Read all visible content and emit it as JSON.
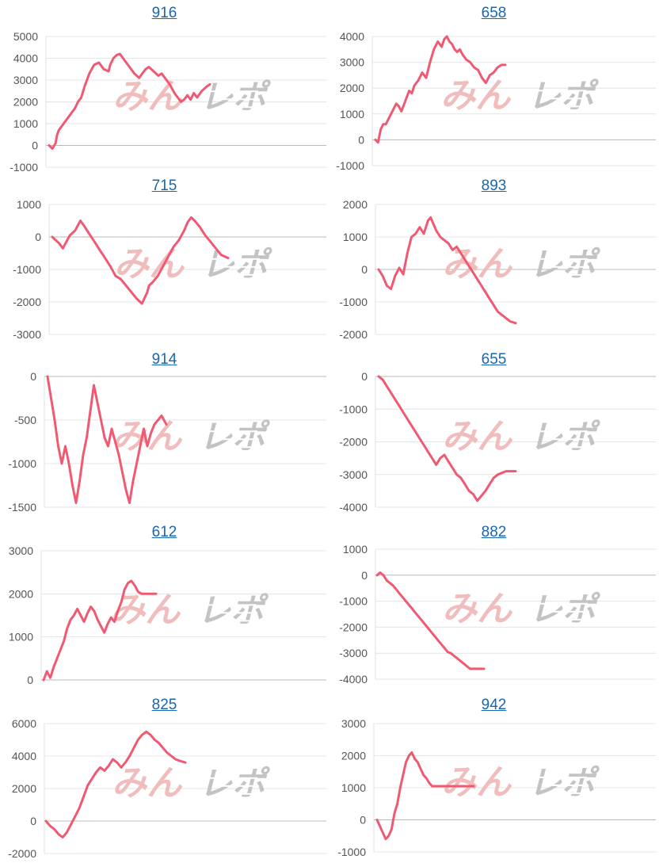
{
  "chart_data": [
    {
      "type": "line",
      "title": "916",
      "yticks": [
        -1000,
        0,
        1000,
        2000,
        3000,
        4000,
        5000
      ],
      "ylim": [
        -1000,
        5000
      ],
      "grid": true,
      "series": [
        {
          "color": "#ef5a72",
          "x": [
            0,
            2,
            4,
            5,
            6,
            9,
            12,
            14,
            16,
            18,
            20,
            22,
            25,
            28,
            31,
            34,
            37,
            38,
            40,
            42,
            44,
            47,
            50,
            53,
            56,
            58,
            60,
            62,
            65,
            68,
            70,
            72,
            75,
            78,
            80,
            82,
            84,
            86,
            88,
            90,
            92,
            95,
            98,
            100
          ],
          "values": [
            0,
            -150,
            100,
            500,
            700,
            1000,
            1300,
            1500,
            1700,
            2000,
            2200,
            2700,
            3300,
            3700,
            3800,
            3500,
            3400,
            3700,
            4000,
            4150,
            4200,
            3900,
            3600,
            3300,
            3100,
            3300,
            3500,
            3600,
            3400,
            3200,
            3300,
            3100,
            2800,
            2400,
            2200,
            2000,
            2100,
            2300,
            2100,
            2400,
            2200,
            2500,
            2700,
            2800
          ]
        }
      ]
    },
    {
      "type": "line",
      "title": "658",
      "yticks": [
        -1000,
        0,
        1000,
        2000,
        3000,
        4000
      ],
      "ylim": [
        -1000,
        4000
      ],
      "grid": true,
      "series": [
        {
          "color": "#ef5a72",
          "x": [
            0,
            2,
            4,
            6,
            8,
            11,
            14,
            16,
            18,
            20,
            23,
            26,
            28,
            30,
            33,
            36,
            39,
            42,
            45,
            48,
            51,
            53,
            55,
            57,
            59,
            61,
            63,
            65,
            67,
            70,
            73,
            76,
            79,
            82,
            85,
            88,
            91,
            94,
            97,
            100
          ],
          "values": [
            0,
            -100,
            400,
            600,
            600,
            900,
            1200,
            1400,
            1300,
            1100,
            1500,
            1900,
            1800,
            2100,
            2300,
            2600,
            2400,
            3000,
            3500,
            3800,
            3600,
            3900,
            4000,
            3800,
            3700,
            3500,
            3400,
            3500,
            3300,
            3100,
            3000,
            2800,
            2700,
            2400,
            2200,
            2500,
            2600,
            2800,
            2900,
            2900
          ]
        }
      ]
    },
    {
      "type": "line",
      "title": "715",
      "yticks": [
        -3000,
        -2000,
        -1000,
        0,
        1000
      ],
      "ylim": [
        -3000,
        1000
      ],
      "grid": true,
      "series": [
        {
          "color": "#ef5a72",
          "x": [
            0,
            2,
            4,
            6,
            8,
            10,
            13,
            16,
            18,
            21,
            24,
            27,
            30,
            33,
            36,
            39,
            42,
            45,
            48,
            51,
            54,
            55,
            57,
            60,
            63,
            66,
            69,
            72,
            75,
            77,
            79,
            81,
            84,
            87,
            90,
            93,
            96,
            100
          ],
          "values": [
            0,
            -100,
            -200,
            -350,
            -150,
            50,
            200,
            500,
            350,
            100,
            -150,
            -400,
            -650,
            -900,
            -1200,
            -1300,
            -1500,
            -1700,
            -1900,
            -2050,
            -1700,
            -1500,
            -1400,
            -1200,
            -900,
            -600,
            -300,
            -100,
            200,
            450,
            600,
            500,
            300,
            50,
            -150,
            -350,
            -550,
            -650
          ]
        }
      ]
    },
    {
      "type": "line",
      "title": "893",
      "yticks": [
        -2000,
        -1000,
        0,
        1000,
        2000
      ],
      "ylim": [
        -2000,
        2000
      ],
      "grid": true,
      "series": [
        {
          "color": "#ef5a72",
          "x": [
            0,
            3,
            6,
            9,
            12,
            15,
            18,
            21,
            24,
            27,
            30,
            33,
            36,
            38,
            40,
            42,
            45,
            48,
            51,
            54,
            57,
            60,
            63,
            66,
            69,
            72,
            75,
            78,
            81,
            84,
            87,
            90,
            93,
            96,
            100
          ],
          "values": [
            0,
            -200,
            -500,
            -600,
            -200,
            50,
            -150,
            500,
            1000,
            1100,
            1300,
            1100,
            1500,
            1600,
            1400,
            1200,
            1000,
            900,
            800,
            600,
            700,
            500,
            300,
            100,
            -100,
            -300,
            -500,
            -700,
            -900,
            -1100,
            -1300,
            -1400,
            -1500,
            -1600,
            -1650
          ]
        }
      ]
    },
    {
      "type": "line",
      "title": "914",
      "yticks": [
        -1500,
        -1000,
        -500,
        0
      ],
      "ylim": [
        -1500,
        0
      ],
      "grid": true,
      "series": [
        {
          "color": "#ef5a72",
          "x": [
            0,
            3,
            6,
            9,
            12,
            15,
            18,
            21,
            24,
            27,
            30,
            33,
            36,
            39,
            42,
            45,
            48,
            51,
            54,
            57,
            60,
            63,
            66,
            69,
            72,
            75,
            78,
            81,
            84,
            87,
            90,
            93,
            96,
            100
          ],
          "values": [
            0,
            -250,
            -500,
            -800,
            -1000,
            -800,
            -1000,
            -1250,
            -1450,
            -1200,
            -900,
            -700,
            -400,
            -100,
            -300,
            -500,
            -700,
            -800,
            -600,
            -750,
            -900,
            -1100,
            -1300,
            -1450,
            -1200,
            -1000,
            -800,
            -600,
            -800,
            -650,
            -550,
            -500,
            -450,
            -550
          ]
        }
      ]
    },
    {
      "type": "line",
      "title": "655",
      "yticks": [
        -4000,
        -3000,
        -2000,
        -1000,
        0
      ],
      "ylim": [
        -4000,
        0
      ],
      "grid": true,
      "series": [
        {
          "color": "#ef5a72",
          "x": [
            0,
            3,
            6,
            9,
            12,
            15,
            18,
            21,
            24,
            27,
            30,
            33,
            36,
            39,
            42,
            45,
            48,
            51,
            54,
            57,
            60,
            63,
            66,
            69,
            72,
            75,
            78,
            81,
            84,
            87,
            90,
            93,
            96,
            100
          ],
          "values": [
            0,
            -100,
            -300,
            -500,
            -700,
            -900,
            -1100,
            -1300,
            -1500,
            -1700,
            -1900,
            -2100,
            -2300,
            -2500,
            -2700,
            -2500,
            -2400,
            -2600,
            -2800,
            -3000,
            -3100,
            -3300,
            -3500,
            -3600,
            -3800,
            -3650,
            -3500,
            -3300,
            -3100,
            -3000,
            -2950,
            -2900,
            -2900,
            -2900
          ]
        }
      ]
    },
    {
      "type": "line",
      "title": "612",
      "yticks": [
        0,
        1000,
        2000,
        3000
      ],
      "ylim": [
        0,
        3000
      ],
      "grid": true,
      "series": [
        {
          "color": "#ef5a72",
          "x": [
            0,
            3,
            6,
            9,
            12,
            15,
            18,
            21,
            24,
            27,
            30,
            33,
            36,
            39,
            42,
            45,
            48,
            51,
            54,
            57,
            60,
            63,
            66,
            69,
            72,
            75,
            78,
            81,
            84,
            87,
            90,
            93,
            96,
            100
          ],
          "values": [
            0,
            200,
            50,
            300,
            500,
            700,
            900,
            1200,
            1400,
            1500,
            1650,
            1500,
            1350,
            1550,
            1700,
            1600,
            1400,
            1250,
            1100,
            1300,
            1450,
            1350,
            1600,
            1800,
            2100,
            2250,
            2300,
            2200,
            2050,
            2000,
            2000,
            2000,
            2000,
            2000
          ]
        }
      ]
    },
    {
      "type": "line",
      "title": "882",
      "yticks": [
        -4000,
        -3000,
        -2000,
        -1000,
        0,
        1000
      ],
      "ylim": [
        -4000,
        1000
      ],
      "grid": true,
      "series": [
        {
          "color": "#ef5a72",
          "x": [
            0,
            3,
            6,
            9,
            12,
            15,
            18,
            21,
            24,
            27,
            30,
            33,
            36,
            39,
            42,
            45,
            48,
            51,
            54,
            57,
            60,
            63,
            66,
            69,
            72,
            75,
            78,
            81,
            84,
            87,
            90,
            93,
            96,
            100
          ],
          "values": [
            0,
            100,
            0,
            -200,
            -300,
            -400,
            -550,
            -700,
            -850,
            -1000,
            -1150,
            -1300,
            -1450,
            -1600,
            -1750,
            -1900,
            -2050,
            -2200,
            -2350,
            -2500,
            -2650,
            -2800,
            -2950,
            -3000,
            -3100,
            -3200,
            -3300,
            -3400,
            -3500,
            -3600,
            -3600,
            -3600,
            -3600,
            -3600
          ]
        }
      ]
    },
    {
      "type": "line",
      "title": "825",
      "yticks": [
        -2000,
        0,
        2000,
        4000,
        6000
      ],
      "ylim": [
        -2000,
        6000
      ],
      "grid": true,
      "series": [
        {
          "color": "#ef5a72",
          "x": [
            0,
            3,
            6,
            9,
            12,
            15,
            18,
            21,
            24,
            27,
            30,
            33,
            36,
            39,
            42,
            45,
            48,
            51,
            54,
            57,
            60,
            63,
            66,
            69,
            72,
            75,
            78,
            81,
            84,
            87,
            90,
            93,
            96,
            100
          ],
          "values": [
            0,
            -300,
            -500,
            -800,
            -1000,
            -700,
            -200,
            300,
            800,
            1500,
            2200,
            2600,
            3000,
            3300,
            3100,
            3400,
            3800,
            3600,
            3300,
            3600,
            4000,
            4500,
            5000,
            5300,
            5500,
            5300,
            5000,
            4800,
            4500,
            4200,
            4000,
            3800,
            3700,
            3600
          ]
        }
      ]
    },
    {
      "type": "line",
      "title": "942",
      "yticks": [
        -1000,
        0,
        1000,
        2000,
        3000
      ],
      "ylim": [
        -1000,
        3000
      ],
      "grid": true,
      "series": [
        {
          "color": "#ef5a72",
          "x": [
            0,
            3,
            6,
            9,
            12,
            15,
            18,
            21,
            24,
            27,
            30,
            33,
            36,
            39,
            42,
            45,
            48,
            51,
            54,
            57,
            60,
            63,
            66,
            69,
            72,
            75,
            78,
            81,
            84,
            87,
            90,
            93,
            96,
            100
          ],
          "values": [
            0,
            -200,
            -400,
            -600,
            -500,
            -300,
            200,
            500,
            1000,
            1400,
            1800,
            2000,
            2100,
            1900,
            1800,
            1600,
            1400,
            1300,
            1150,
            1050,
            1050,
            1050,
            1050,
            1050,
            1050,
            1050,
            1050,
            1050,
            1050,
            1050,
            1050,
            1050,
            1050,
            1050
          ]
        }
      ]
    }
  ]
}
